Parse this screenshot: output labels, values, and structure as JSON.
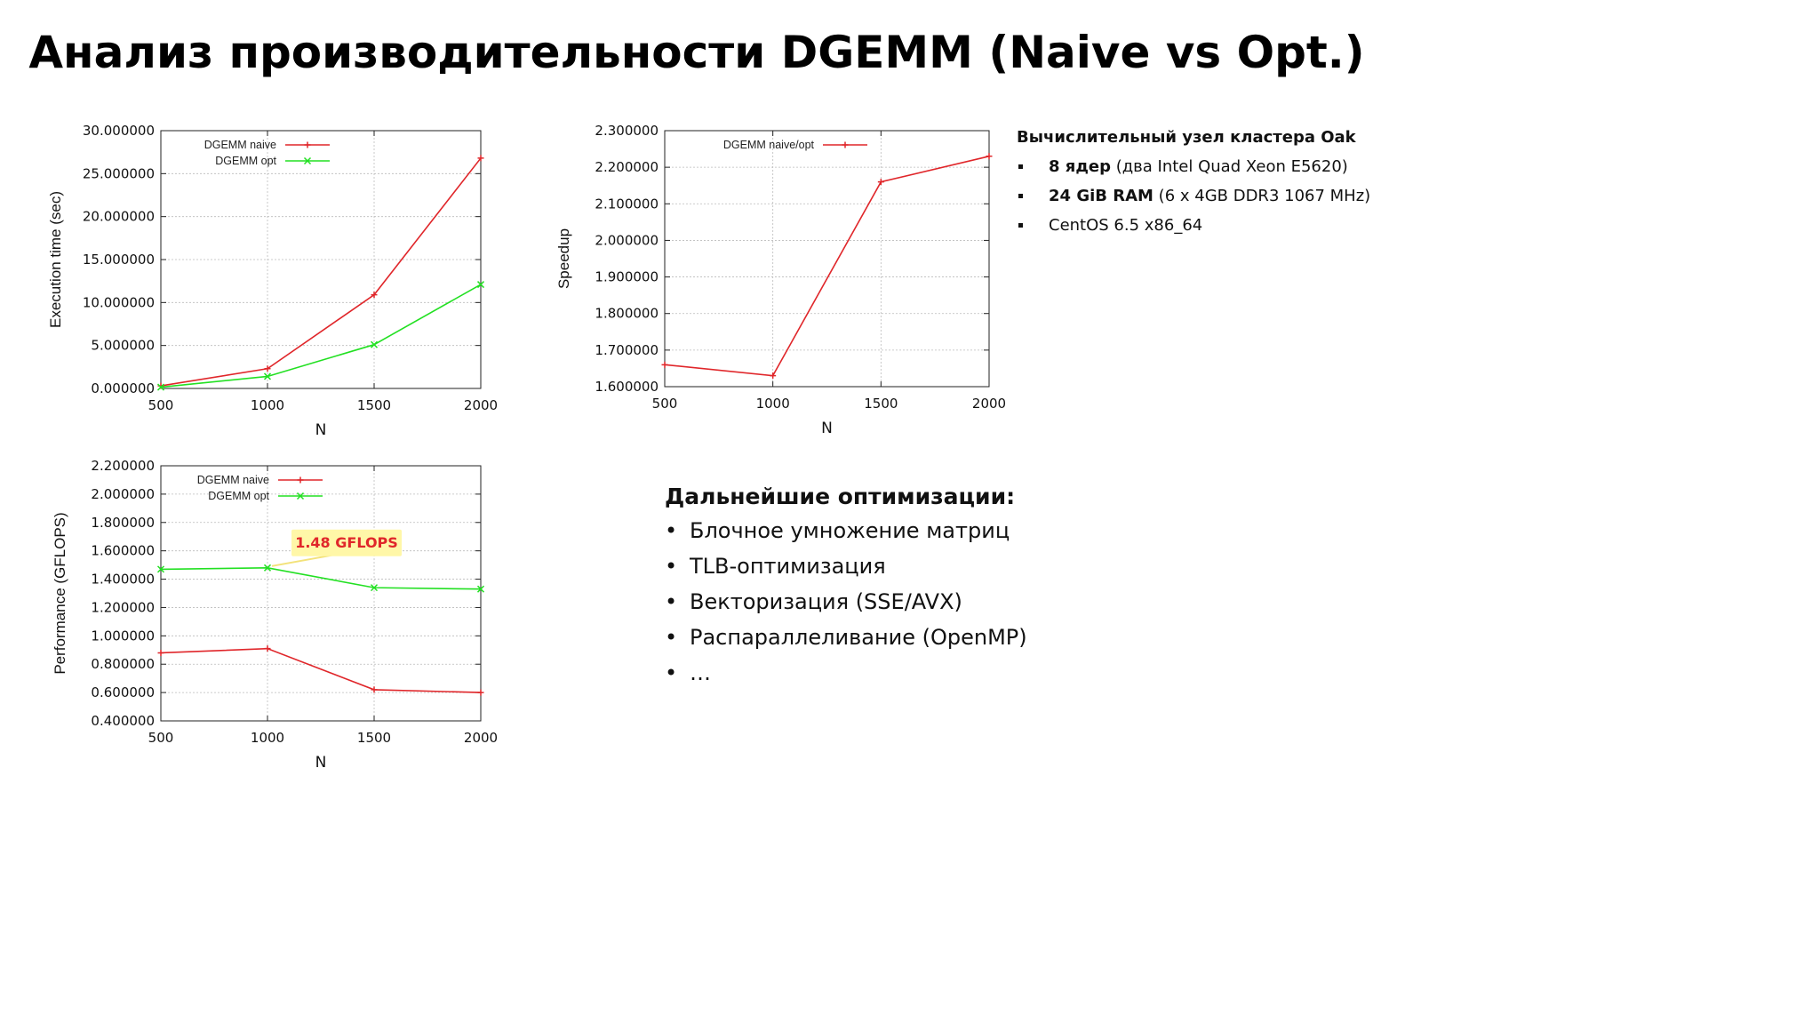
{
  "page_title": "Анализ производительности DGEMM (Naive vs Opt.)",
  "info_box": {
    "title": "Вычислительный узел кластера Oak",
    "items": [
      {
        "bold": "8 ядер",
        "text": " (два Intel Quad Xeon E5620)"
      },
      {
        "bold": "24 GiB RAM",
        "text": " (6 x 4GB DDR3 1067 MHz)"
      },
      {
        "bold": "",
        "text": "CentOS 6.5 x86_64"
      }
    ]
  },
  "optimizations": {
    "title": "Дальнейшие оптимизации:",
    "items": [
      "Блочное умножение матриц",
      "TLB-оптимизация",
      "Векторизация (SSE/AVX)",
      "Распараллеливание (OpenMP)",
      "…"
    ]
  },
  "chart_data": [
    {
      "type": "line",
      "xlabel": "N",
      "ylabel": "Execution time (sec)",
      "x": [
        500,
        1000,
        1500,
        2000
      ],
      "xlim": [
        500,
        2000
      ],
      "ylim": [
        0,
        30
      ],
      "yticks": [
        "0.000000",
        "5.000000",
        "10.000000",
        "15.000000",
        "20.000000",
        "25.000000",
        "30.000000"
      ],
      "xticks": [
        "500",
        "1000",
        "1500",
        "2000"
      ],
      "grid": true,
      "legend": "top-left",
      "series": [
        {
          "name": "DGEMM naive",
          "color": "#e0262a",
          "marker": "plus",
          "values": [
            0.3,
            2.3,
            10.9,
            26.8
          ]
        },
        {
          "name": "DGEMM opt",
          "color": "#22e022",
          "marker": "x",
          "values": [
            0.15,
            1.4,
            5.1,
            12.1
          ]
        }
      ]
    },
    {
      "type": "line",
      "xlabel": "N",
      "ylabel": "Speedup",
      "x": [
        500,
        1000,
        1500,
        2000
      ],
      "xlim": [
        500,
        2000
      ],
      "ylim": [
        1.6,
        2.3
      ],
      "yticks": [
        "1.600000",
        "1.700000",
        "1.800000",
        "1.900000",
        "2.000000",
        "2.100000",
        "2.200000",
        "2.300000"
      ],
      "xticks": [
        "500",
        "1000",
        "1500",
        "2000"
      ],
      "grid": true,
      "legend": "top-left",
      "series": [
        {
          "name": "DGEMM naive/opt",
          "color": "#e0262a",
          "marker": "plus",
          "values": [
            1.66,
            1.63,
            2.16,
            2.23
          ]
        }
      ]
    },
    {
      "type": "line",
      "xlabel": "N",
      "ylabel": "Performance (GFLOPS)",
      "x": [
        500,
        1000,
        1500,
        2000
      ],
      "xlim": [
        500,
        2000
      ],
      "ylim": [
        0.4,
        2.2
      ],
      "yticks": [
        "0.400000",
        "0.600000",
        "0.800000",
        "1.000000",
        "1.200000",
        "1.400000",
        "1.600000",
        "1.800000",
        "2.000000",
        "2.200000"
      ],
      "xticks": [
        "500",
        "1000",
        "1500",
        "2000"
      ],
      "grid": true,
      "legend": "top-left",
      "annotation": {
        "text": "1.48 GFLOPS",
        "x": 1000,
        "y": 1.48,
        "color": "#e0262a",
        "background": "#fff7a8"
      },
      "series": [
        {
          "name": "DGEMM naive",
          "color": "#e0262a",
          "marker": "plus",
          "values": [
            0.88,
            0.91,
            0.62,
            0.6
          ]
        },
        {
          "name": "DGEMM opt",
          "color": "#22e022",
          "marker": "x",
          "values": [
            1.47,
            1.48,
            1.34,
            1.33
          ]
        }
      ]
    }
  ]
}
